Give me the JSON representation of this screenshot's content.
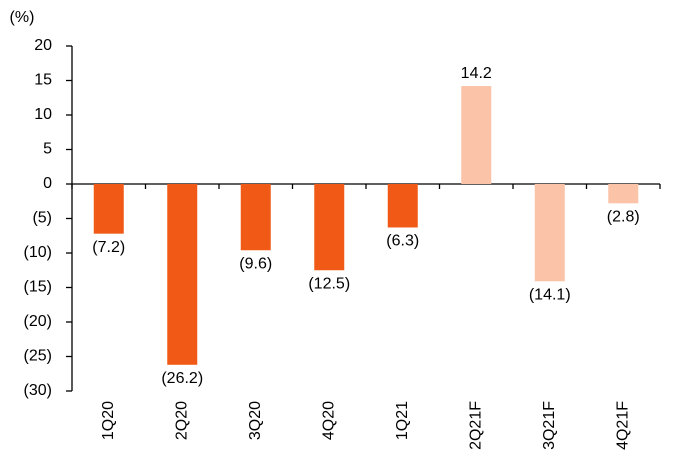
{
  "chart_data": {
    "type": "bar",
    "y_unit_label": "(%)",
    "categories": [
      "1Q20",
      "2Q20",
      "3Q20",
      "4Q20",
      "1Q21",
      "2Q21F",
      "3Q21F",
      "4Q21F"
    ],
    "values": [
      -7.2,
      -26.2,
      -9.6,
      -12.5,
      -6.3,
      14.2,
      -14.1,
      -2.8
    ],
    "value_labels": [
      "(7.2)",
      "(26.2)",
      "(9.6)",
      "(12.5)",
      "(6.3)",
      "14.2",
      "(14.1)",
      "(2.8)"
    ],
    "colors": [
      "#f05a16",
      "#f05a16",
      "#f05a16",
      "#f05a16",
      "#f05a16",
      "#fbc4a8",
      "#fbc4a8",
      "#fbc4a8"
    ],
    "ylim": [
      -30,
      20
    ],
    "yticks": [
      20,
      15,
      10,
      5,
      0,
      {
        "value": -5,
        "label": "(5)"
      },
      {
        "value": -10,
        "label": "(10)"
      },
      {
        "value": -15,
        "label": "(15)"
      },
      {
        "value": -20,
        "label": "(20)"
      },
      {
        "value": -25,
        "label": "(25)"
      },
      {
        "value": -30,
        "label": "(30)"
      }
    ],
    "grid": false
  }
}
